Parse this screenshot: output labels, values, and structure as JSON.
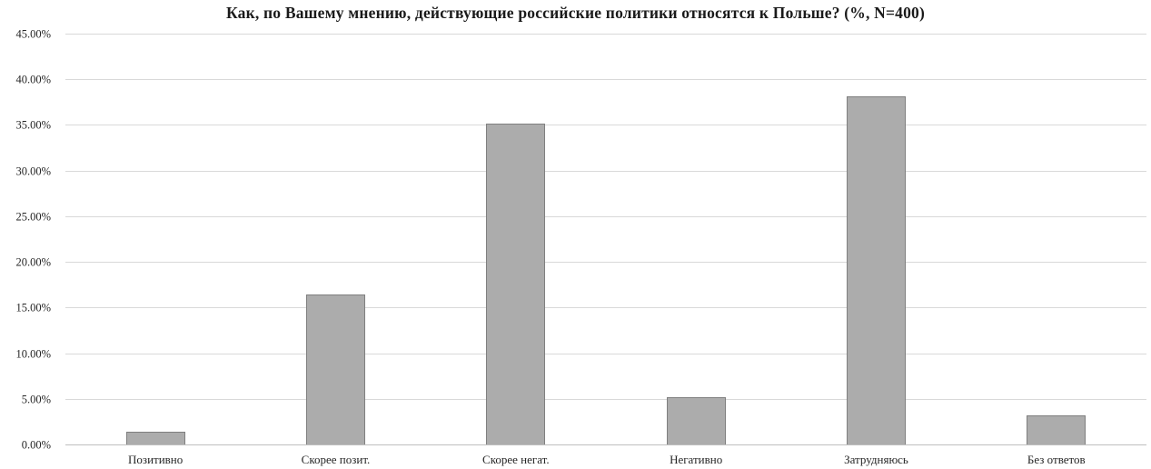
{
  "chart_data": {
    "type": "bar",
    "title": "Как, по Вашему мнению, действующие российские политики относятся к Польше? (%, N=400)",
    "categories": [
      "Позитивно",
      "Скорее позит.",
      "Скорее негат.",
      "Негативно",
      "Затрудняюсь",
      "Без ответов"
    ],
    "values": [
      1.5,
      16.5,
      35.25,
      5.25,
      38.25,
      3.25
    ],
    "values_unit": "%",
    "sample_size_note": "N=400",
    "y_ticks": [
      "0.00%",
      "5.00%",
      "10.00%",
      "15.00%",
      "20.00%",
      "25.00%",
      "30.00%",
      "35.00%",
      "40.00%",
      "45.00%"
    ],
    "y_tick_values": [
      0,
      5,
      10,
      15,
      20,
      25,
      30,
      35,
      40,
      45
    ],
    "ylim": [
      0,
      45
    ],
    "xlabel": "",
    "ylabel": "",
    "grid": true,
    "legend": "none",
    "colors": {
      "bar_fill": "#acacac",
      "bar_border": "#7f7f7f",
      "gridline": "#d9d9d9",
      "axis_line": "#bfbfbf",
      "text": "#262626",
      "background": "#ffffff"
    }
  }
}
